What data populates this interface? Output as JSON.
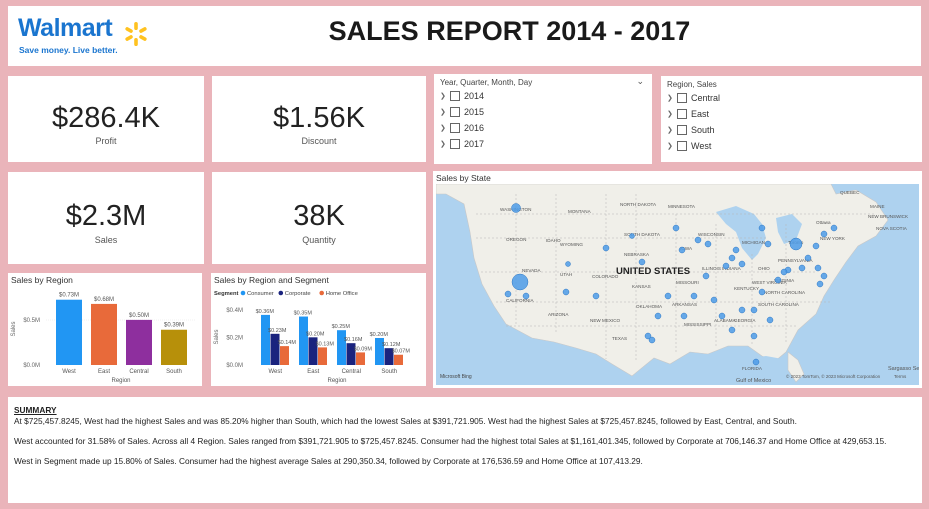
{
  "header": {
    "logo_text": "Walmart",
    "logo_tagline": "Save money. Live better.",
    "title": "SALES REPORT 2014 - 2017"
  },
  "kpis": {
    "profit": {
      "value": "$286.4K",
      "label": "Profit"
    },
    "discount": {
      "value": "$1.56K",
      "label": "Discount"
    },
    "sales": {
      "value": "$2.3M",
      "label": "Sales"
    },
    "quantity": {
      "value": "38K",
      "label": "Quantity"
    }
  },
  "date_slicer": {
    "title": "Year, Quarter, Month, Day",
    "items": [
      "2014",
      "2015",
      "2016",
      "2017"
    ]
  },
  "region_slicer": {
    "title": "Region, Sales",
    "items": [
      "Central",
      "East",
      "South",
      "West"
    ]
  },
  "map": {
    "title": "Sales by State",
    "country_label": "UNITED STATES",
    "labels": [
      "WASHINGTON",
      "MONTANA",
      "NORTH DAKOTA",
      "MINNESOTA",
      "OREGON",
      "IDAHO",
      "SOUTH DAKOTA",
      "WYOMING",
      "NEBRASKA",
      "IOWA",
      "NEVADA",
      "UTAH",
      "COLORADO",
      "KANSAS",
      "MISSOURI",
      "ILLINOIS",
      "INDIANA",
      "OHIO",
      "MICHIGAN",
      "WISCONSIN",
      "KENTUCKY",
      "CALIFORNIA",
      "ARIZONA",
      "NEW MEXICO",
      "OKLAHOMA",
      "TEXAS",
      "ARKANSAS",
      "MISSISSIPPI",
      "ALABAMA",
      "GEORGIA",
      "FLORIDA",
      "SOUTH CAROLINA",
      "NORTH CAROLINA",
      "VIRGINIA",
      "WEST VIRGINIA",
      "PENNSYLVANIA",
      "NEW YORK",
      "MAINE",
      "QUEBEC",
      "NEW BRUNSWICK",
      "NOVA SCOTIA",
      "Ottawa",
      "Toronto",
      "Sargasso Sea",
      "Gulf of Mexico"
    ],
    "attribution": "© 2023 TomTom, © 2023 Microsoft Corporation",
    "terms": "Terms",
    "bing": "Microsoft Bing"
  },
  "summary": {
    "heading": "SUMMARY",
    "p1": "At $725,457.8245, West had the highest Sales and was 85.20% higher than South, which had the lowest Sales at $391,721.905. West had the highest Sales at $725,457.8245, followed by East, Central, and South.",
    "p2": "West accounted for 31.58% of Sales. Across all 4 Region. Sales ranged from $391,721.905 to $725,457.8245. Consumer had the highest total Sales at $1,161,401.345, followed by Corporate at 706,146.37 and Home Office at 429,653.15.",
    "p3": "West in Segment  made up 15.80% of Sales. Consumer had the highest average Sales at 290,350.34, followed by Corporate at 176,536.59 and Home Office at 107,413.29."
  },
  "chart_data": [
    {
      "type": "bar",
      "title": "Sales by Region",
      "categories": [
        "West",
        "East",
        "Central",
        "South"
      ],
      "values": [
        725457.8245,
        678781.24,
        501239.89,
        391721.905
      ],
      "data_labels": [
        "$0.73M",
        "$0.68M",
        "$0.50M",
        "$0.39M"
      ],
      "colors": [
        "#2196f3",
        "#e86a3a",
        "#8e2f9e",
        "#b7900a"
      ],
      "xlabel": "Region",
      "ylabel": "Sales",
      "yticks": [
        "$0.0M",
        "$0.5M"
      ],
      "ylim": [
        0,
        800000
      ]
    },
    {
      "type": "bar",
      "title": "Sales by Region and Segment",
      "legend_title": "Segment",
      "categories": [
        "West",
        "East",
        "Central",
        "South"
      ],
      "series": [
        {
          "name": "Consumer",
          "color": "#2196f3",
          "values": [
            362880,
            350910,
            252030,
            195580
          ],
          "labels": [
            "$0.36M",
            "$0.35M",
            "$0.25M",
            "$0.20M"
          ]
        },
        {
          "name": "Corporate",
          "color": "#1a237e",
          "values": [
            225850,
            200410,
            157990,
            121890
          ],
          "labels": [
            "$0.23M",
            "$0.20M",
            "$0.16M",
            "$0.12M"
          ]
        },
        {
          "name": "Home Office",
          "color": "#e86a3a",
          "values": [
            136720,
            127460,
            91210,
            74260
          ],
          "labels": [
            "$0.14M",
            "$0.13M",
            "$0.09M",
            "$0.07M"
          ]
        }
      ],
      "xlabel": "Region",
      "ylabel": "Sales",
      "yticks": [
        "$0.0M",
        "$0.2M",
        "$0.4M"
      ],
      "ylim": [
        0,
        420000
      ]
    }
  ]
}
